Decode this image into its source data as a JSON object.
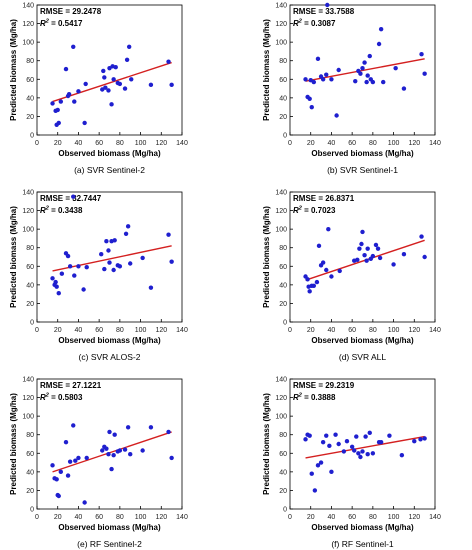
{
  "colors": {
    "point": "#1f1fcf",
    "fit_line": "#d42020",
    "axis": "#000000",
    "tick_label": "#222222"
  },
  "chart_data": [
    {
      "type": "scatter",
      "caption": "(a) SVR Sentinel-2",
      "xlabel": "Observed biomass (Mg/ha)",
      "ylabel": "Predicted biomass (Mg/ha)",
      "xlim": [
        0,
        140
      ],
      "ylim": [
        0,
        140
      ],
      "xticks": [
        0,
        20,
        40,
        60,
        80,
        100,
        120,
        140
      ],
      "yticks": [
        0,
        20,
        40,
        60,
        80,
        100,
        120,
        140
      ],
      "rmse_label": "RMSE = 29.2478",
      "r2_prefix": "R",
      "r2_sup": "2",
      "r2_value": " = 0.5417",
      "points": [
        [
          15,
          34
        ],
        [
          18,
          26
        ],
        [
          19,
          11
        ],
        [
          20,
          27
        ],
        [
          21,
          13
        ],
        [
          23,
          36
        ],
        [
          28,
          71
        ],
        [
          30,
          42
        ],
        [
          31,
          44
        ],
        [
          35,
          95
        ],
        [
          36,
          36
        ],
        [
          40,
          47
        ],
        [
          46,
          13
        ],
        [
          47,
          55
        ],
        [
          63,
          49
        ],
        [
          64,
          69
        ],
        [
          65,
          62
        ],
        [
          66,
          51
        ],
        [
          69,
          48
        ],
        [
          70,
          72
        ],
        [
          72,
          33
        ],
        [
          73,
          74
        ],
        [
          74,
          60
        ],
        [
          76,
          73
        ],
        [
          78,
          56
        ],
        [
          80,
          55
        ],
        [
          85,
          50
        ],
        [
          87,
          81
        ],
        [
          89,
          95
        ],
        [
          91,
          60
        ],
        [
          110,
          54
        ],
        [
          127,
          79
        ],
        [
          130,
          54
        ]
      ],
      "fit": [
        [
          15,
          36
        ],
        [
          130,
          78
        ]
      ]
    },
    {
      "type": "scatter",
      "caption": "(b) SVR Sentinel-1",
      "xlabel": "Observed biomass (Mg/ha)",
      "ylabel": "Predicted biomass (Mg/ha)",
      "xlim": [
        0,
        140
      ],
      "ylim": [
        0,
        140
      ],
      "xticks": [
        0,
        20,
        40,
        60,
        80,
        100,
        120,
        140
      ],
      "yticks": [
        0,
        20,
        40,
        60,
        80,
        100,
        120,
        140
      ],
      "rmse_label": "RMSE = 33.7588",
      "r2_prefix": "R",
      "r2_sup": "2",
      "r2_value": " = 0.3087",
      "points": [
        [
          15,
          60
        ],
        [
          17,
          41
        ],
        [
          19,
          39
        ],
        [
          20,
          59
        ],
        [
          21,
          30
        ],
        [
          23,
          57
        ],
        [
          27,
          82
        ],
        [
          30,
          63
        ],
        [
          32,
          60
        ],
        [
          35,
          65
        ],
        [
          36,
          140
        ],
        [
          40,
          60
        ],
        [
          45,
          21
        ],
        [
          47,
          70
        ],
        [
          63,
          58
        ],
        [
          66,
          69
        ],
        [
          68,
          66
        ],
        [
          70,
          72
        ],
        [
          72,
          78
        ],
        [
          74,
          57
        ],
        [
          75,
          64
        ],
        [
          77,
          85
        ],
        [
          78,
          60
        ],
        [
          80,
          57
        ],
        [
          86,
          98
        ],
        [
          88,
          114
        ],
        [
          90,
          57
        ],
        [
          102,
          72
        ],
        [
          110,
          50
        ],
        [
          127,
          87
        ],
        [
          130,
          66
        ]
      ],
      "fit": [
        [
          15,
          58
        ],
        [
          130,
          82
        ]
      ]
    },
    {
      "type": "scatter",
      "caption": "(c) SVR ALOS-2",
      "xlabel": "Observed biomass (Mg/ha)",
      "ylabel": "Predicted biomass (Mg/ha)",
      "xlim": [
        0,
        140
      ],
      "ylim": [
        0,
        140
      ],
      "xticks": [
        0,
        20,
        40,
        60,
        80,
        100,
        120,
        140
      ],
      "yticks": [
        0,
        20,
        40,
        60,
        80,
        100,
        120,
        140
      ],
      "rmse_label": "RMSE = 32.7447",
      "r2_prefix": "R",
      "r2_sup": "2",
      "r2_value": " = 0.3438",
      "points": [
        [
          15,
          47
        ],
        [
          17,
          40
        ],
        [
          18,
          43
        ],
        [
          19,
          38
        ],
        [
          21,
          31
        ],
        [
          24,
          52
        ],
        [
          28,
          74
        ],
        [
          30,
          71
        ],
        [
          32,
          60
        ],
        [
          35,
          135
        ],
        [
          36,
          50
        ],
        [
          40,
          60
        ],
        [
          45,
          35
        ],
        [
          48,
          59
        ],
        [
          62,
          73
        ],
        [
          65,
          57
        ],
        [
          67,
          87
        ],
        [
          69,
          77
        ],
        [
          70,
          64
        ],
        [
          72,
          87
        ],
        [
          74,
          56
        ],
        [
          75,
          88
        ],
        [
          78,
          61
        ],
        [
          80,
          60
        ],
        [
          86,
          95
        ],
        [
          88,
          103
        ],
        [
          90,
          63
        ],
        [
          102,
          69
        ],
        [
          110,
          37
        ],
        [
          127,
          94
        ],
        [
          130,
          65
        ]
      ],
      "fit": [
        [
          15,
          55
        ],
        [
          130,
          82
        ]
      ]
    },
    {
      "type": "scatter",
      "caption": "(d) SVR ALL",
      "xlabel": "Observed biomass (Mg/ha)",
      "ylabel": "Predicted biomass (Mg/ha)",
      "xlim": [
        0,
        140
      ],
      "ylim": [
        0,
        140
      ],
      "xticks": [
        0,
        20,
        40,
        60,
        80,
        100,
        120,
        140
      ],
      "yticks": [
        0,
        20,
        40,
        60,
        80,
        100,
        120,
        140
      ],
      "rmse_label": "RMSE = 26.8371",
      "r2_prefix": "R",
      "r2_sup": "2",
      "r2_value": " = 0.7023",
      "points": [
        [
          15,
          49
        ],
        [
          17,
          46
        ],
        [
          18,
          38
        ],
        [
          19,
          33
        ],
        [
          21,
          39
        ],
        [
          23,
          39
        ],
        [
          26,
          43
        ],
        [
          28,
          82
        ],
        [
          30,
          61
        ],
        [
          32,
          64
        ],
        [
          35,
          56
        ],
        [
          37,
          100
        ],
        [
          40,
          49
        ],
        [
          48,
          55
        ],
        [
          62,
          66
        ],
        [
          65,
          67
        ],
        [
          67,
          79
        ],
        [
          69,
          84
        ],
        [
          70,
          97
        ],
        [
          72,
          72
        ],
        [
          74,
          66
        ],
        [
          75,
          79
        ],
        [
          78,
          68
        ],
        [
          80,
          71
        ],
        [
          83,
          83
        ],
        [
          85,
          79
        ],
        [
          87,
          69
        ],
        [
          100,
          62
        ],
        [
          110,
          73
        ],
        [
          127,
          92
        ],
        [
          130,
          70
        ]
      ],
      "fit": [
        [
          15,
          45
        ],
        [
          130,
          88
        ]
      ]
    },
    {
      "type": "scatter",
      "caption": "(e) RF Sentinel-2",
      "xlabel": "Observed biomass (Mg/ha)",
      "ylabel": "Predicted biomass (Mg/ha)",
      "xlim": [
        0,
        140
      ],
      "ylim": [
        0,
        140
      ],
      "xticks": [
        0,
        20,
        40,
        60,
        80,
        100,
        120,
        140
      ],
      "yticks": [
        0,
        20,
        40,
        60,
        80,
        100,
        120,
        140
      ],
      "rmse_label": "RMSE = 27.1221",
      "r2_prefix": "R",
      "r2_sup": "2",
      "r2_value": " = 0.5803",
      "points": [
        [
          15,
          47
        ],
        [
          17,
          33
        ],
        [
          19,
          32
        ],
        [
          20,
          15
        ],
        [
          21,
          14
        ],
        [
          23,
          40
        ],
        [
          28,
          72
        ],
        [
          30,
          36
        ],
        [
          32,
          51
        ],
        [
          35,
          90
        ],
        [
          37,
          52
        ],
        [
          40,
          55
        ],
        [
          46,
          7
        ],
        [
          48,
          55
        ],
        [
          63,
          63
        ],
        [
          65,
          67
        ],
        [
          67,
          65
        ],
        [
          69,
          59
        ],
        [
          70,
          83
        ],
        [
          72,
          43
        ],
        [
          74,
          58
        ],
        [
          75,
          80
        ],
        [
          78,
          62
        ],
        [
          80,
          63
        ],
        [
          85,
          64
        ],
        [
          88,
          88
        ],
        [
          90,
          59
        ],
        [
          102,
          63
        ],
        [
          110,
          88
        ],
        [
          127,
          83
        ],
        [
          130,
          55
        ]
      ],
      "fit": [
        [
          15,
          40
        ],
        [
          130,
          83
        ]
      ]
    },
    {
      "type": "scatter",
      "caption": "(f) RF Sentinel-1",
      "xlabel": "Observed biomass (Mg/ha)",
      "ylabel": "Predicted biomass (Mg/ha)",
      "xlim": [
        0,
        140
      ],
      "ylim": [
        0,
        140
      ],
      "xticks": [
        0,
        20,
        40,
        60,
        80,
        100,
        120,
        140
      ],
      "yticks": [
        0,
        20,
        40,
        60,
        80,
        100,
        120,
        140
      ],
      "rmse_label": "RMSE = 29.2319",
      "r2_prefix": "R",
      "r2_sup": "2",
      "r2_value": " = 0.3888",
      "points": [
        [
          15,
          75
        ],
        [
          17,
          80
        ],
        [
          19,
          79
        ],
        [
          21,
          38
        ],
        [
          24,
          20
        ],
        [
          27,
          47
        ],
        [
          30,
          50
        ],
        [
          32,
          72
        ],
        [
          35,
          79
        ],
        [
          38,
          68
        ],
        [
          40,
          40
        ],
        [
          44,
          80
        ],
        [
          47,
          70
        ],
        [
          52,
          62
        ],
        [
          55,
          73
        ],
        [
          60,
          67
        ],
        [
          62,
          63
        ],
        [
          64,
          78
        ],
        [
          66,
          60
        ],
        [
          68,
          56
        ],
        [
          70,
          62
        ],
        [
          73,
          78
        ],
        [
          75,
          59
        ],
        [
          77,
          82
        ],
        [
          80,
          60
        ],
        [
          86,
          72
        ],
        [
          88,
          72
        ],
        [
          96,
          79
        ],
        [
          108,
          58
        ],
        [
          120,
          73
        ],
        [
          126,
          75
        ],
        [
          130,
          76
        ]
      ],
      "fit": [
        [
          15,
          55
        ],
        [
          130,
          78
        ]
      ]
    }
  ]
}
